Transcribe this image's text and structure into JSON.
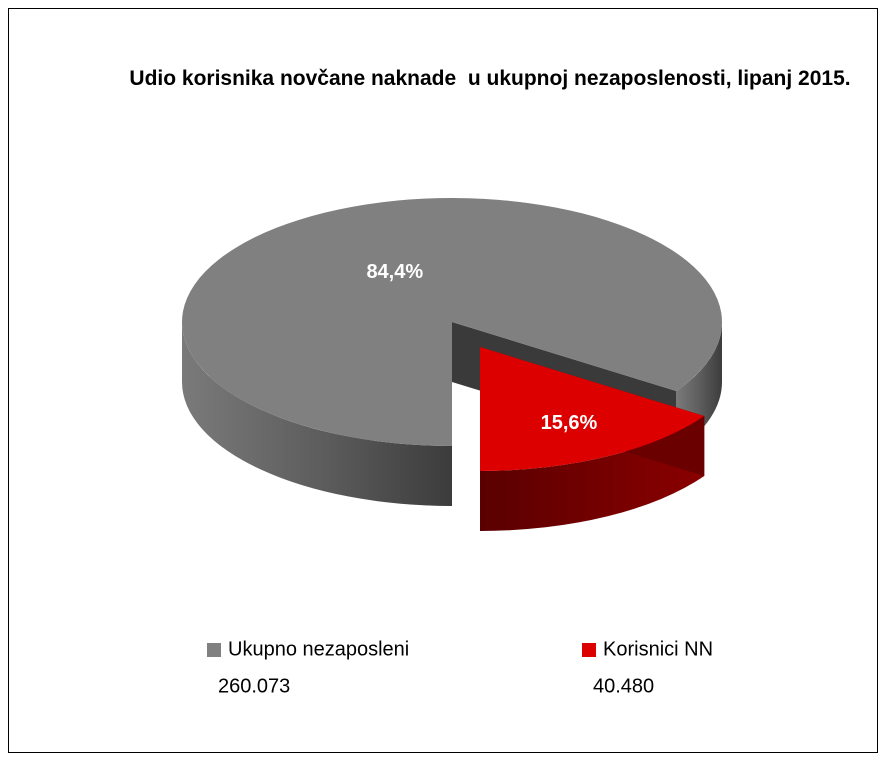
{
  "chart_data": {
    "type": "pie",
    "title": "Udio korisnika novčane naknade  u ukupnoj nezaposlenosti, lipanj 2015.",
    "categories": [
      "Ukupno nezaposleni",
      "Korisnici NN"
    ],
    "values": [
      84.4,
      15.6
    ],
    "value_labels": [
      "84,4%",
      "15,6%"
    ],
    "legend_labels": [
      "260.073",
      "40.480"
    ],
    "colors": [
      "#808080",
      "#dd0000"
    ],
    "legend": "bottom"
  }
}
